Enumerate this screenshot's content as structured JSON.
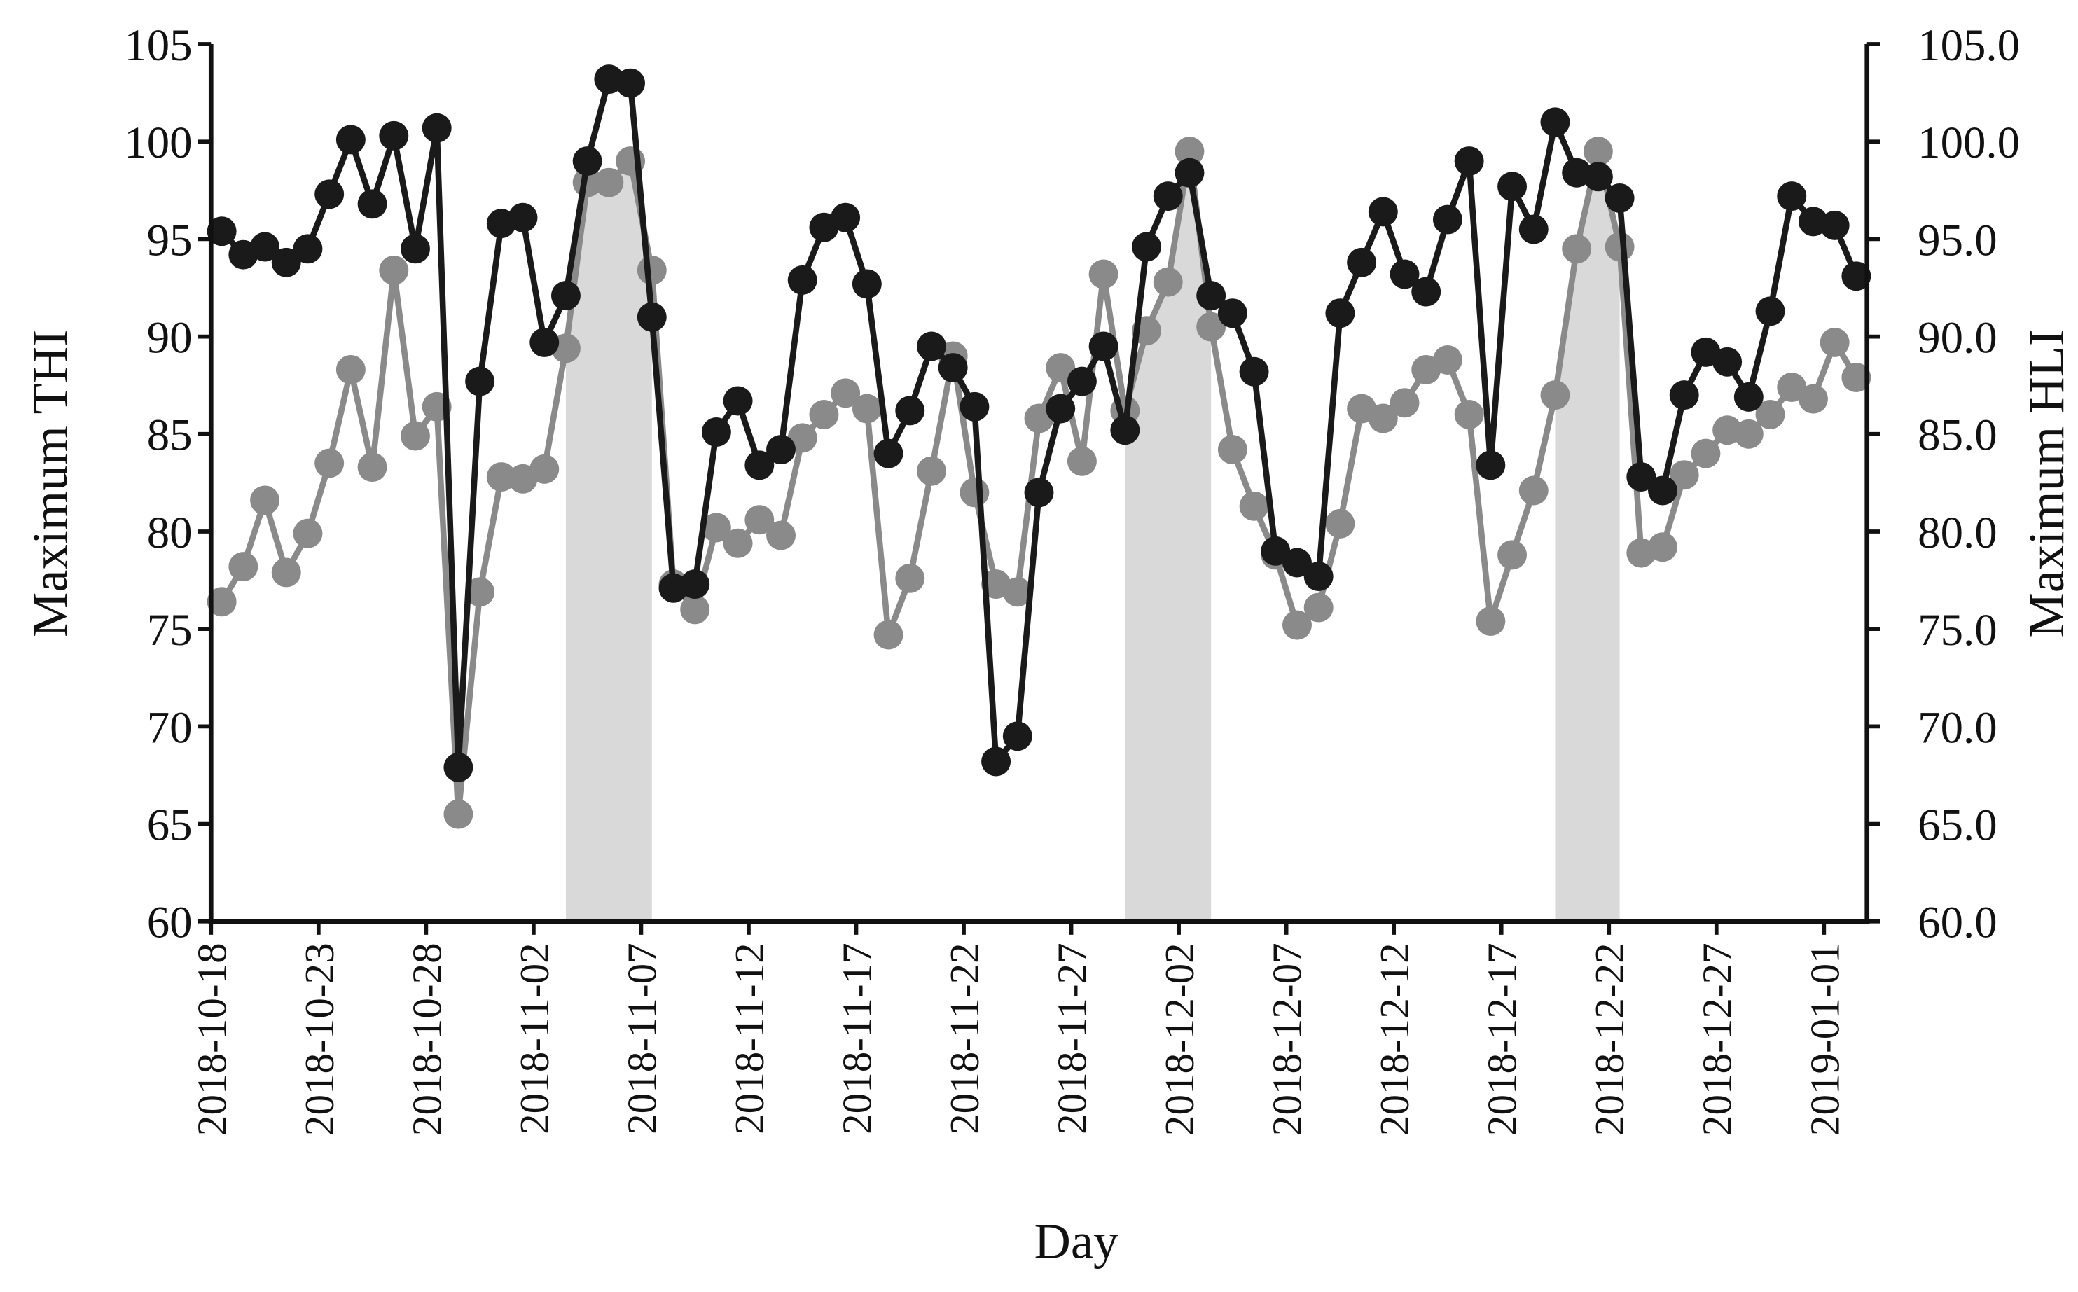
{
  "chart_data": {
    "type": "line",
    "x_label": "Day",
    "y_label": "Maximum THI",
    "y2_label": "Maximum HLI",
    "x": [
      "2018-10-18",
      "2018-10-19",
      "2018-10-20",
      "2018-10-21",
      "2018-10-22",
      "2018-10-23",
      "2018-10-24",
      "2018-10-25",
      "2018-10-26",
      "2018-10-27",
      "2018-10-28",
      "2018-10-29",
      "2018-10-30",
      "2018-10-31",
      "2018-11-01",
      "2018-11-02",
      "2018-11-03",
      "2018-11-04",
      "2018-11-05",
      "2018-11-06",
      "2018-11-07",
      "2018-11-08",
      "2018-11-09",
      "2018-11-10",
      "2018-11-11",
      "2018-11-12",
      "2018-11-13",
      "2018-11-14",
      "2018-11-15",
      "2018-11-16",
      "2018-11-17",
      "2018-11-18",
      "2018-11-19",
      "2018-11-20",
      "2018-11-21",
      "2018-11-22",
      "2018-11-23",
      "2018-11-24",
      "2018-11-25",
      "2018-11-26",
      "2018-11-27",
      "2018-11-28",
      "2018-11-29",
      "2018-11-30",
      "2018-12-01",
      "2018-12-02",
      "2018-12-03",
      "2018-12-04",
      "2018-12-05",
      "2018-12-06",
      "2018-12-07",
      "2018-12-08",
      "2018-12-09",
      "2018-12-10",
      "2018-12-11",
      "2018-12-12",
      "2018-12-13",
      "2018-12-14",
      "2018-12-15",
      "2018-12-16",
      "2018-12-17",
      "2018-12-18",
      "2018-12-19",
      "2018-12-20",
      "2018-12-21",
      "2018-12-22",
      "2018-12-23",
      "2018-12-24",
      "2018-12-25",
      "2018-12-26",
      "2018-12-27",
      "2018-12-28",
      "2018-12-29",
      "2018-12-30",
      "2018-12-31",
      "2019-01-01",
      "2019-01-02"
    ],
    "xticks": [
      "2018-10-18",
      "2018-10-23",
      "2018-10-28",
      "2018-11-02",
      "2018-11-07",
      "2018-11-12",
      "2018-11-17",
      "2018-11-22",
      "2018-11-27",
      "2018-12-02",
      "2018-12-07",
      "2018-12-12",
      "2018-12-17",
      "2018-12-22",
      "2018-12-27",
      "2019-01-01"
    ],
    "ylim": [
      60,
      105
    ],
    "yticks": [
      60,
      65,
      70,
      75,
      80,
      85,
      90,
      95,
      100,
      105
    ],
    "y2lim": [
      60,
      105
    ],
    "y2ticks": [
      {
        "value": 60,
        "label": "60.0"
      },
      {
        "value": 65,
        "label": "65.0"
      },
      {
        "value": 70,
        "label": "70.0"
      },
      {
        "value": 75,
        "label": "75.0"
      },
      {
        "value": 80,
        "label": "80.0"
      },
      {
        "value": 85,
        "label": "85.0"
      },
      {
        "value": 90,
        "label": "90.0"
      },
      {
        "value": 95,
        "label": "95.0"
      },
      {
        "value": 100,
        "label": "100.0"
      },
      {
        "value": 105,
        "label": "105.0"
      }
    ],
    "shaded_ranges": [
      {
        "start": "2018-11-03",
        "end": "2018-11-07"
      },
      {
        "start": "2018-11-29",
        "end": "2018-12-03"
      },
      {
        "start": "2018-12-19",
        "end": "2018-12-22"
      }
    ],
    "shade_color": "#d9d9d9",
    "series": [
      {
        "name": "HLI",
        "axis": "y2",
        "color": "#8a8a8a",
        "values": [
          76.4,
          78.2,
          81.6,
          77.9,
          79.9,
          83.5,
          88.3,
          83.3,
          93.4,
          84.9,
          86.4,
          65.5,
          76.9,
          82.8,
          82.7,
          83.2,
          89.4,
          97.9,
          97.9,
          99.0,
          93.4,
          77.3,
          76.0,
          80.2,
          79.4,
          80.6,
          79.8,
          84.8,
          86.0,
          87.1,
          86.3,
          74.7,
          77.6,
          83.1,
          89.0,
          82.0,
          77.3,
          76.9,
          85.8,
          88.4,
          83.6,
          93.2,
          86.2,
          90.3,
          92.8,
          99.5,
          90.5,
          84.2,
          81.3,
          78.8,
          75.2,
          76.1,
          80.4,
          86.3,
          85.8,
          86.6,
          88.3,
          88.8,
          86.0,
          75.4,
          78.8,
          82.1,
          87.0,
          94.5,
          99.5,
          94.6,
          78.9,
          79.2,
          82.9,
          84.0,
          85.2,
          85.0,
          86.0,
          87.4,
          86.8,
          89.7,
          87.9
        ]
      },
      {
        "name": "THI",
        "color": "#1a1a1a",
        "values": [
          95.4,
          94.2,
          94.6,
          93.8,
          94.5,
          97.3,
          100.1,
          96.8,
          100.3,
          94.5,
          100.7,
          67.9,
          87.7,
          95.8,
          96.1,
          89.7,
          92.1,
          99.0,
          103.2,
          103.0,
          91.0,
          77.1,
          77.3,
          85.1,
          86.7,
          83.4,
          84.2,
          92.9,
          95.6,
          96.1,
          92.7,
          84.0,
          86.2,
          89.5,
          88.4,
          86.4,
          68.2,
          69.5,
          82.0,
          86.3,
          87.7,
          89.5,
          85.2,
          94.6,
          97.2,
          98.4,
          92.1,
          91.2,
          88.2,
          79.0,
          78.4,
          77.7,
          91.2,
          93.8,
          96.4,
          93.2,
          92.3,
          96.0,
          99.0,
          83.4,
          97.7,
          95.5,
          101.0,
          98.4,
          98.2,
          97.1,
          82.8,
          82.1,
          87.0,
          89.2,
          88.7,
          86.9,
          91.3,
          97.2,
          95.9,
          95.7,
          93.1
        ]
      }
    ]
  }
}
